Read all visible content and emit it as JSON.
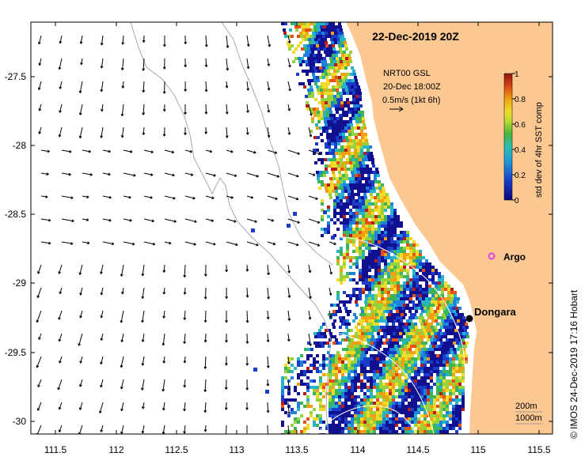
{
  "map": {
    "date_title": "22-Dec-2019 20Z",
    "product": {
      "line1": "NRT00 GSL",
      "line2": "20-Dec 18:00Z",
      "line3": "0.5m/s (1kt 6h)"
    },
    "colorbar": {
      "label": "std dev of 4hr SST comp",
      "ticks": [
        "1",
        "0.8",
        "0.6",
        "0.4",
        "0.2",
        "0"
      ]
    },
    "places": {
      "argo": "Argo",
      "dongara": "Dongara"
    },
    "contours": {
      "c200": "200m",
      "c1000": "1000m"
    },
    "credit": "© IMOS 24-Dec-2019 17:16 Hobart",
    "axes": {
      "x_ticks": [
        "111.5",
        "112",
        "112.5",
        "113",
        "113.5",
        "114",
        "114.5",
        "115",
        "115.5"
      ],
      "y_ticks": [
        "-27.5",
        "-28",
        "-28.5",
        "-29",
        "-29.5",
        "-30"
      ]
    },
    "colors": {
      "land": "#fcc892",
      "palette": [
        "#101090",
        "#1a3cc8",
        "#1e82dc",
        "#28b4c8",
        "#3cb45a",
        "#96d23c",
        "#f0dc28",
        "#f0a014",
        "#e65014",
        "#b41e14"
      ]
    }
  }
}
